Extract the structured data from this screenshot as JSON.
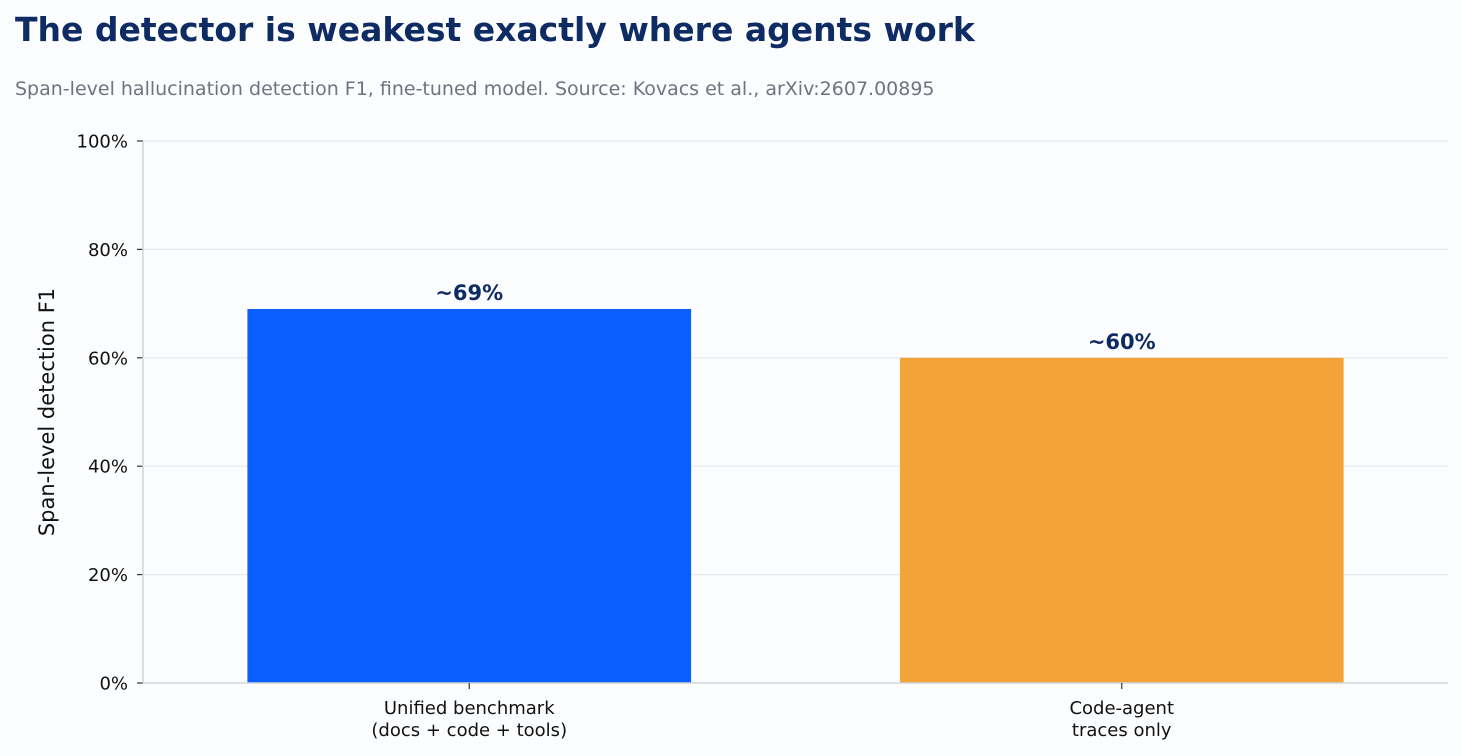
{
  "chart_data": {
    "type": "bar",
    "title": "The detector is weakest exactly where agents work",
    "subtitle": "Span-level hallucination detection F1, fine-tuned model. Source: Kovacs et al., arXiv:2607.00895",
    "xlabel": "",
    "ylabel": "Span-level detection F1",
    "ylim": [
      0,
      100
    ],
    "yticks": [
      {
        "value": 0,
        "label": "0%"
      },
      {
        "value": 20,
        "label": "20%"
      },
      {
        "value": 40,
        "label": "40%"
      },
      {
        "value": 60,
        "label": "60%"
      },
      {
        "value": 80,
        "label": "80%"
      },
      {
        "value": 100,
        "label": "100%"
      }
    ],
    "grid": true,
    "categories": [
      [
        "Unified benchmark",
        "(docs + code + tools)"
      ],
      [
        "Code-agent",
        "traces only"
      ]
    ],
    "values": [
      69,
      60
    ],
    "data_labels": [
      "~69%",
      "~60%"
    ],
    "colors": [
      "#0b5fff",
      "#f2a33a"
    ]
  }
}
